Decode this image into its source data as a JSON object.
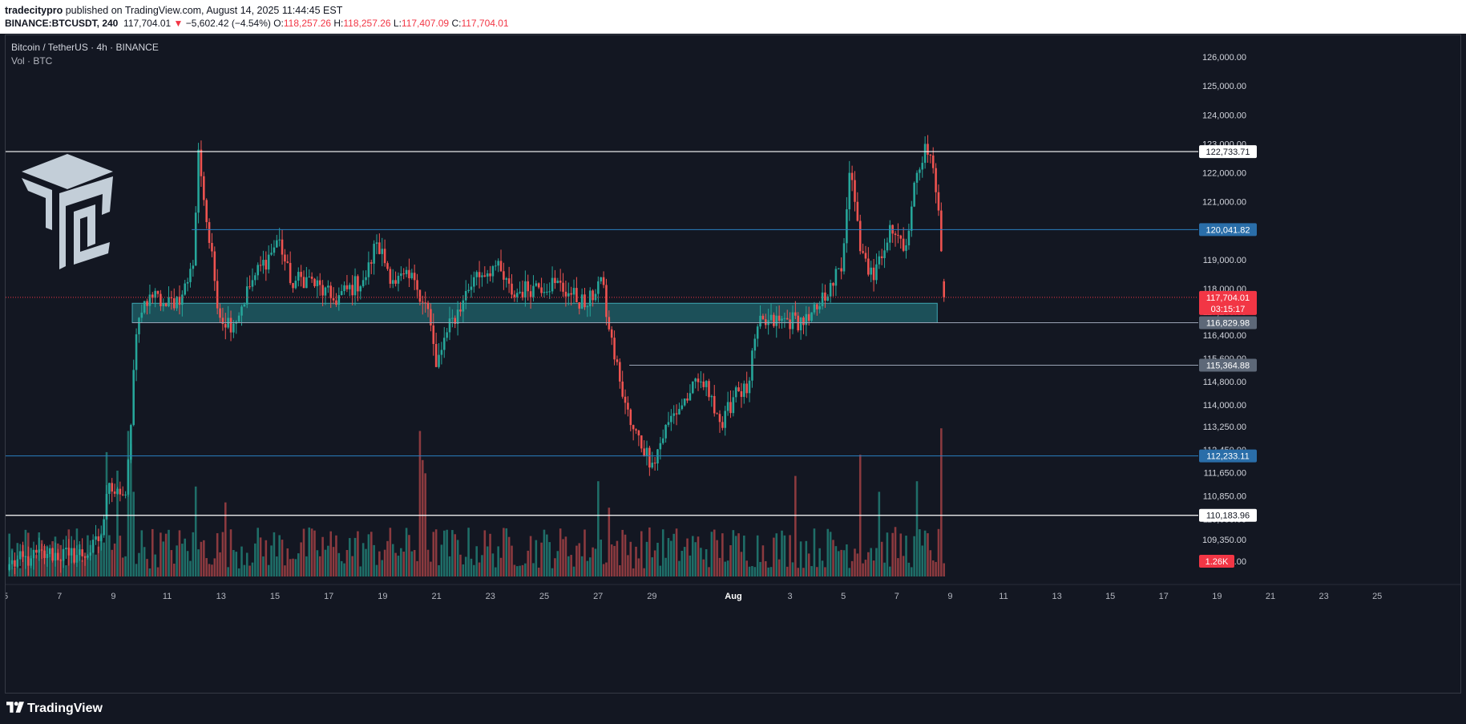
{
  "header": {
    "publisher": "tradecitypro",
    "published_text": "published on TradingView.com, August 14, 2025 11:44:45 EST",
    "symbol": "BINANCE:BTCUSDT, 240",
    "last": "117,704.01",
    "change_arrow": "▼",
    "change": "−5,602.42 (−4.54%)",
    "o_label": "O:",
    "o_value": "118,257.26",
    "h_label": "H:",
    "h_value": "118,257.26",
    "l_label": "L:",
    "l_value": "117,407.09",
    "c_label": "C:",
    "c_value": "117,704.01"
  },
  "legend": {
    "title": "Bitcoin / TetherUS · 4h · BINANCE",
    "volume": "Vol · BTC"
  },
  "footer": {
    "brand": "TradingView"
  },
  "colors": {
    "up": "#26a69a",
    "down": "#ef5350",
    "background": "#131722",
    "zone": "#1e5b63",
    "blue_line": "#2962ff",
    "label_blue": "#2a6ea9",
    "label_gray": "#5d6878"
  },
  "chart_data": {
    "type": "candlestick",
    "y_axis": {
      "range": [
        108300,
        126500
      ],
      "ticks": [
        "126,000.00",
        "125,000.00",
        "124,000.00",
        "123,000.00",
        "122,000.00",
        "121,000.00",
        "120,000.00",
        "119,000.00",
        "118,000.00",
        "117,200.00",
        "116,400.00",
        "115,600.00",
        "114,800.00",
        "114,000.00",
        "113,250.00",
        "112,450.00",
        "111,650.00",
        "110,850.00",
        "110,050.00",
        "109,350.00",
        "108,600.00"
      ],
      "tick_values": [
        126000,
        125000,
        124000,
        123000,
        122000,
        121000,
        120000,
        119000,
        118000,
        117200,
        116400,
        115600,
        114800,
        114000,
        113250,
        112450,
        111650,
        110850,
        110050,
        109350,
        108600
      ]
    },
    "x_axis": {
      "ticks": [
        "5",
        "7",
        "9",
        "11",
        "13",
        "15",
        "17",
        "19",
        "21",
        "23",
        "25",
        "27",
        "29",
        "Aug",
        "3",
        "5",
        "7",
        "9",
        "11",
        "13",
        "15",
        "17",
        "19",
        "21",
        "23",
        "25"
      ]
    },
    "levels": [
      {
        "value": 122733.71,
        "label": "122,733.71",
        "style": "white"
      },
      {
        "value": 120041.82,
        "label": "120,041.82",
        "style": "blue"
      },
      {
        "value": 116829.98,
        "label": "116,829.98",
        "style": "gray"
      },
      {
        "value": 115364.88,
        "label": "115,364.88",
        "style": "gray"
      },
      {
        "value": 112233.11,
        "label": "112,233.11",
        "style": "blue"
      },
      {
        "value": 110183.96,
        "label": "110,183.96",
        "style": "white"
      }
    ],
    "zone": {
      "low": 116829.98,
      "high": 117500,
      "start_index": 46,
      "end_index": 344
    },
    "last_price": {
      "value": 117704.01,
      "label": "117,704.01",
      "countdown": "03:15:17"
    },
    "volume_label": "1.26K",
    "anchors": [
      [
        0,
        108500
      ],
      [
        8,
        108700
      ],
      [
        14,
        108850
      ],
      [
        22,
        108800
      ],
      [
        30,
        108900
      ],
      [
        34,
        109500
      ],
      [
        37,
        111300
      ],
      [
        40,
        111100
      ],
      [
        43,
        110900
      ],
      [
        45,
        113300
      ],
      [
        46,
        115200
      ],
      [
        48,
        117000
      ],
      [
        52,
        117800
      ],
      [
        58,
        117400
      ],
      [
        64,
        117800
      ],
      [
        68,
        118800
      ],
      [
        70,
        122800
      ],
      [
        73,
        120300
      ],
      [
        78,
        117000
      ],
      [
        83,
        116800
      ],
      [
        90,
        118300
      ],
      [
        100,
        119700
      ],
      [
        104,
        118200
      ],
      [
        110,
        118400
      ],
      [
        120,
        117600
      ],
      [
        132,
        118400
      ],
      [
        136,
        119600
      ],
      [
        142,
        118300
      ],
      [
        150,
        118300
      ],
      [
        155,
        117300
      ],
      [
        158,
        115300
      ],
      [
        162,
        116500
      ],
      [
        168,
        117600
      ],
      [
        172,
        118400
      ],
      [
        180,
        118800
      ],
      [
        186,
        117800
      ],
      [
        194,
        118100
      ],
      [
        202,
        118200
      ],
      [
        208,
        117800
      ],
      [
        214,
        117400
      ],
      [
        219,
        118400
      ],
      [
        222,
        116600
      ],
      [
        226,
        114800
      ],
      [
        230,
        113300
      ],
      [
        238,
        112000
      ],
      [
        244,
        113400
      ],
      [
        252,
        114400
      ],
      [
        256,
        114800
      ],
      [
        260,
        114300
      ],
      [
        264,
        113200
      ],
      [
        269,
        114600
      ],
      [
        273,
        114400
      ],
      [
        277,
        116700
      ],
      [
        285,
        116900
      ],
      [
        296,
        116900
      ],
      [
        300,
        117400
      ],
      [
        304,
        118200
      ],
      [
        308,
        118600
      ],
      [
        311,
        122000
      ],
      [
        313,
        121000
      ],
      [
        315,
        119300
      ],
      [
        320,
        118300
      ],
      [
        326,
        120200
      ],
      [
        332,
        119500
      ],
      [
        336,
        122000
      ],
      [
        339,
        123000
      ],
      [
        341,
        122600
      ],
      [
        344,
        120700
      ],
      [
        346,
        117704
      ]
    ],
    "volume_spikes": [
      [
        36,
        4.7
      ],
      [
        40,
        4.0
      ],
      [
        44,
        5.5
      ],
      [
        45,
        5.0
      ],
      [
        46,
        3.2
      ],
      [
        69,
        3.4
      ],
      [
        80,
        2.8
      ],
      [
        152,
        5.5
      ],
      [
        153,
        4.4
      ],
      [
        154,
        3.9
      ],
      [
        218,
        3.6
      ],
      [
        222,
        2.6
      ],
      [
        291,
        3.8
      ],
      [
        315,
        4.6
      ],
      [
        322,
        3.2
      ],
      [
        336,
        3.6
      ],
      [
        345,
        5.6
      ],
      [
        346,
        0.5
      ]
    ]
  }
}
